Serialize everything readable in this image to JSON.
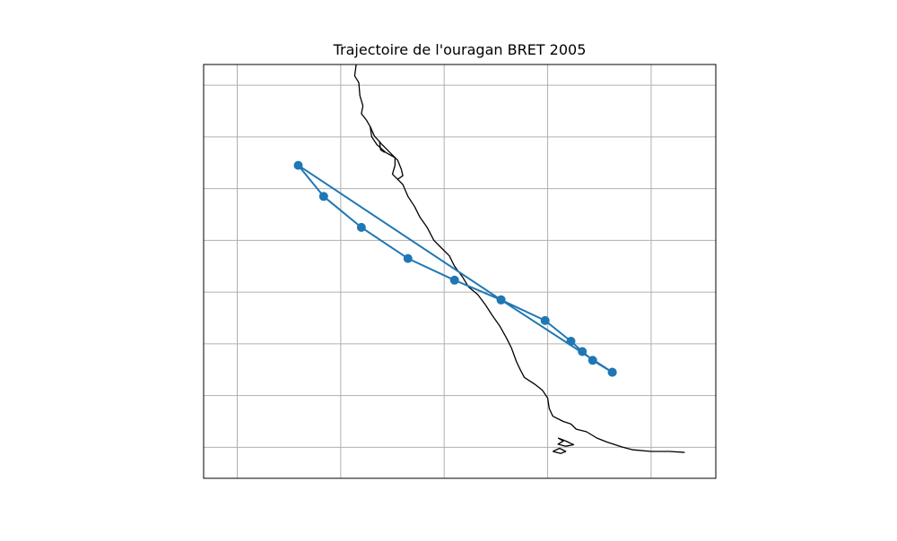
{
  "chart_data": {
    "type": "line",
    "title": "Trajectoire de l'ouragan BRET 2005",
    "xlabel": "",
    "ylabel": "",
    "grid": true,
    "legend": "none",
    "xlim": [
      -102.0,
      -92.1
    ],
    "ylim": [
      16.0,
      24.0
    ],
    "gridlines_x": [
      -101.35,
      -99.35,
      -97.35,
      -95.35,
      -93.35
    ],
    "gridlines_y": [
      16.6,
      17.6,
      18.6,
      19.6,
      20.6,
      21.6,
      22.6,
      23.6
    ],
    "series": [
      {
        "name": "",
        "color": "#1f77b4",
        "marker": "circle",
        "points": [
          {
            "lon": -94.1,
            "lat": 18.05
          },
          {
            "lon": -94.48,
            "lat": 18.28
          },
          {
            "lon": -94.68,
            "lat": 18.45
          },
          {
            "lon": -94.9,
            "lat": 18.65
          },
          {
            "lon": -95.4,
            "lat": 19.05
          },
          {
            "lon": -96.25,
            "lat": 19.45
          },
          {
            "lon": -97.15,
            "lat": 19.83
          },
          {
            "lon": -98.05,
            "lat": 20.25
          },
          {
            "lon": -98.95,
            "lat": 20.85
          },
          {
            "lon": -99.68,
            "lat": 21.45
          },
          {
            "lon": -100.17,
            "lat": 22.05
          },
          {
            "lon": -96.25,
            "lat": 19.45
          },
          {
            "lon": -94.1,
            "lat": 18.05
          }
        ]
      }
    ],
    "coastline": {
      "color": "#000000",
      "segments": [
        [
          [
            -99.05,
            24.0
          ],
          [
            -99.08,
            23.78
          ],
          [
            -99.0,
            23.65
          ],
          [
            -98.98,
            23.4
          ],
          [
            -98.92,
            23.2
          ],
          [
            -98.95,
            23.05
          ],
          [
            -98.85,
            22.92
          ],
          [
            -98.78,
            22.8
          ],
          [
            -98.75,
            22.6
          ],
          [
            -98.65,
            22.45
          ],
          [
            -98.48,
            22.3
          ],
          [
            -98.3,
            22.2
          ],
          [
            -98.3,
            22.05
          ],
          [
            -98.35,
            21.88
          ],
          [
            -98.25,
            21.78
          ],
          [
            -98.15,
            21.68
          ],
          [
            -98.05,
            21.45
          ],
          [
            -97.92,
            21.25
          ],
          [
            -97.82,
            21.05
          ],
          [
            -97.68,
            20.85
          ],
          [
            -97.55,
            20.6
          ],
          [
            -97.4,
            20.45
          ],
          [
            -97.25,
            20.3
          ],
          [
            -97.15,
            20.1
          ],
          [
            -97.0,
            19.9
          ],
          [
            -96.88,
            19.7
          ],
          [
            -96.7,
            19.55
          ],
          [
            -96.55,
            19.35
          ],
          [
            -96.42,
            19.15
          ],
          [
            -96.28,
            18.95
          ],
          [
            -96.15,
            18.72
          ],
          [
            -96.05,
            18.52
          ],
          [
            -95.95,
            18.25
          ],
          [
            -95.88,
            18.1
          ],
          [
            -95.8,
            17.95
          ],
          [
            -95.6,
            17.82
          ],
          [
            -95.45,
            17.7
          ],
          [
            -95.35,
            17.55
          ],
          [
            -95.32,
            17.35
          ],
          [
            -95.25,
            17.2
          ],
          [
            -95.05,
            17.1
          ],
          [
            -94.9,
            17.05
          ],
          [
            -94.8,
            16.95
          ],
          [
            -94.6,
            16.9
          ],
          [
            -94.4,
            16.78
          ],
          [
            -94.2,
            16.7
          ],
          [
            -93.9,
            16.6
          ],
          [
            -93.7,
            16.55
          ],
          [
            -93.35,
            16.52
          ],
          [
            -93.0,
            16.52
          ],
          [
            -92.7,
            16.5
          ]
        ],
        [
          [
            -98.78,
            22.8
          ],
          [
            -98.7,
            22.62
          ],
          [
            -98.55,
            22.45
          ],
          [
            -98.45,
            22.35
          ],
          [
            -98.35,
            22.25
          ],
          [
            -98.25,
            22.15
          ],
          [
            -98.18,
            21.98
          ],
          [
            -98.15,
            21.85
          ],
          [
            -98.25,
            21.78
          ]
        ],
        [
          [
            -98.6,
            22.52
          ],
          [
            -98.58,
            22.35
          ],
          [
            -98.5,
            22.3
          ]
        ],
        [
          [
            -95.15,
            16.78
          ],
          [
            -95.0,
            16.72
          ],
          [
            -94.85,
            16.65
          ],
          [
            -95.0,
            16.62
          ],
          [
            -95.15,
            16.66
          ],
          [
            -95.05,
            16.72
          ],
          [
            -95.15,
            16.78
          ]
        ],
        [
          [
            -95.25,
            16.52
          ],
          [
            -95.1,
            16.48
          ],
          [
            -95.0,
            16.52
          ],
          [
            -95.12,
            16.58
          ],
          [
            -95.25,
            16.52
          ]
        ]
      ]
    }
  }
}
